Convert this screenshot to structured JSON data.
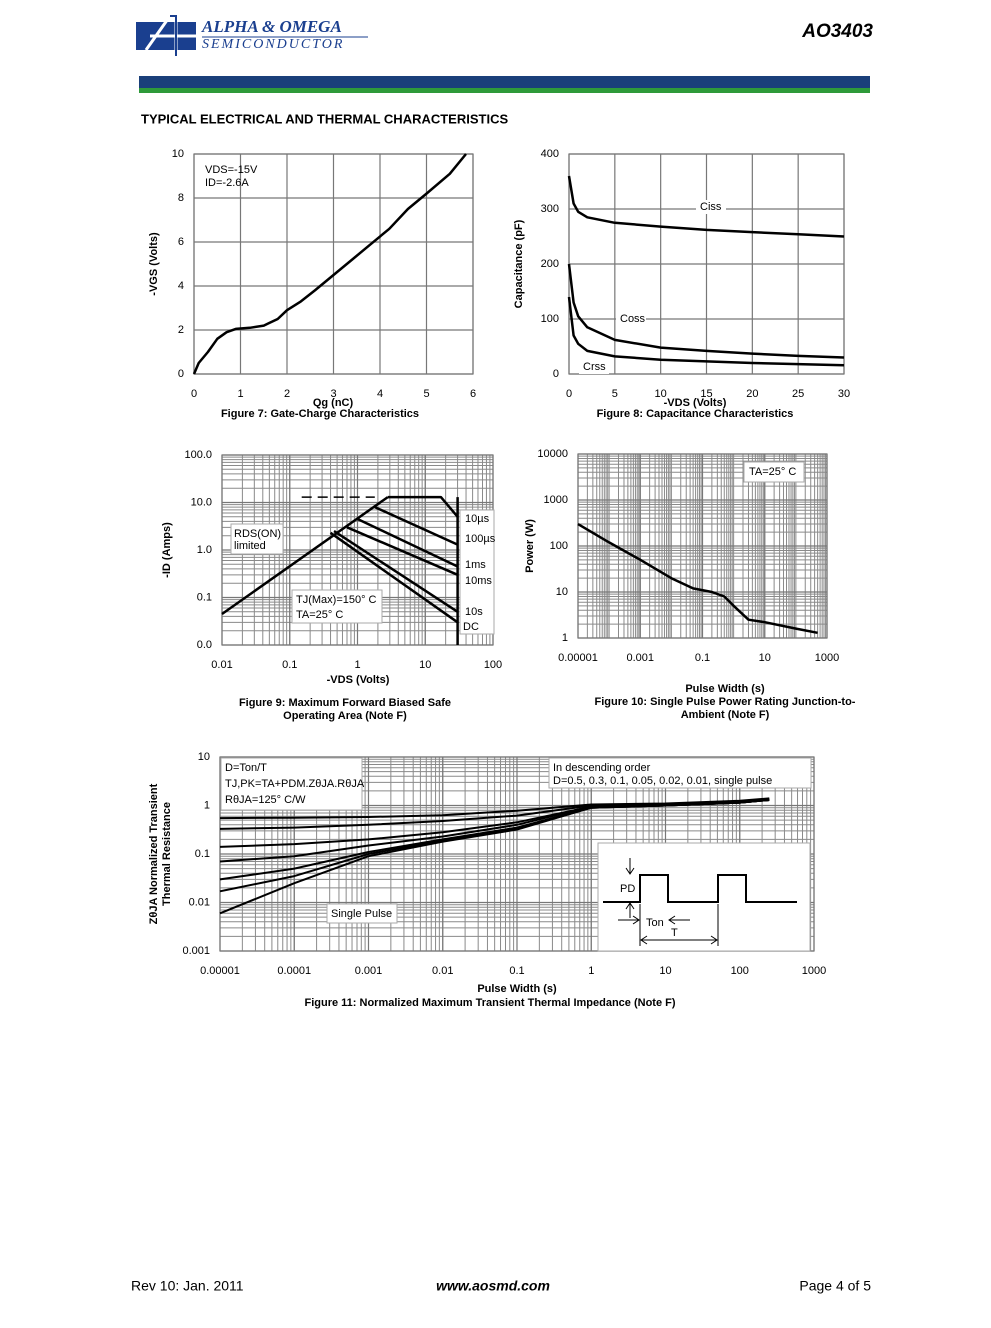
{
  "header": {
    "company": "ALPHA & OMEGA",
    "division": "SEMICONDUCTOR",
    "part": "AO3403"
  },
  "section_title": "TYPICAL ELECTRICAL AND THERMAL CHARACTERISTICS",
  "chart_data": [
    {
      "type": "line",
      "caption": [
        "Figure 7: Gate-Charge Characteristics"
      ],
      "xlabel": "Qg (nC)",
      "ylabel": [
        "-VGS (Volts)"
      ],
      "xlim": [
        0,
        6
      ],
      "ylim": [
        0,
        10
      ],
      "xticks": [
        0,
        1,
        2,
        3,
        4,
        5,
        6
      ],
      "yticks": [
        0,
        2,
        4,
        6,
        8,
        10
      ],
      "grid": true,
      "color": "#000000",
      "annotations": [
        "VDS=-15V",
        "ID=-2.6A"
      ],
      "series": [
        {
          "x": [
            0,
            0.1,
            0.3,
            0.5,
            0.7,
            0.9,
            1.2,
            1.5,
            1.6,
            1.8,
            2,
            2.3,
            2.6,
            3,
            3.4,
            3.8,
            4.2,
            4.6,
            5,
            5.5,
            5.85
          ],
          "values": [
            0,
            0.5,
            1,
            1.6,
            1.9,
            2.05,
            2.1,
            2.2,
            2.3,
            2.5,
            2.9,
            3.3,
            3.8,
            4.5,
            5.2,
            5.9,
            6.6,
            7.5,
            8.2,
            9.1,
            10
          ]
        }
      ]
    },
    {
      "type": "line",
      "caption": [
        "Figure 8: Capacitance Characteristics"
      ],
      "xlabel": "-VDS (Volts)",
      "ylabel": [
        "Capacitance (pF)"
      ],
      "xlim": [
        0,
        30
      ],
      "ylim": [
        0,
        400
      ],
      "xticks": [
        0,
        5,
        10,
        15,
        20,
        25,
        30
      ],
      "yticks": [
        0,
        100,
        200,
        300,
        400
      ],
      "grid": true,
      "color": "#000000",
      "series": [
        {
          "name": "Ciss",
          "x": [
            0,
            0.5,
            1,
            2,
            5,
            10,
            15,
            20,
            25,
            30
          ],
          "values": [
            360,
            310,
            295,
            285,
            275,
            268,
            262,
            258,
            254,
            250
          ]
        },
        {
          "name": "Coss",
          "x": [
            0,
            0.5,
            1,
            2,
            5,
            10,
            15,
            20,
            25,
            30
          ],
          "values": [
            200,
            130,
            105,
            85,
            62,
            48,
            42,
            37,
            33,
            30
          ]
        },
        {
          "name": "Crss",
          "x": [
            0,
            0.5,
            1,
            2,
            5,
            10,
            15,
            20,
            25,
            30
          ],
          "values": [
            140,
            70,
            55,
            42,
            32,
            26,
            23,
            20,
            18,
            16
          ]
        }
      ]
    },
    {
      "type": "line",
      "caption": [
        "Figure 9: Maximum Forward Biased Safe",
        "Operating Area (Note F)"
      ],
      "xlabel": "-VDS (Volts)",
      "ylabel": [
        "-ID (Amps)"
      ],
      "xlog": true,
      "ylog": true,
      "xlim": [
        0.01,
        100
      ],
      "ylim": [
        0.01,
        100
      ],
      "xticks": [
        0.01,
        0.1,
        1,
        10,
        100
      ],
      "yticks": [
        {
          "value": 100,
          "label": "100.0"
        },
        {
          "value": 10,
          "label": "10.0"
        },
        {
          "value": 1,
          "label": "1.0"
        },
        0.1,
        {
          "value": 0.01,
          "label": "0.0"
        }
      ],
      "grid": true,
      "color": "#000000",
      "annotations": [
        "RDS(ON)",
        "limited",
        "TJ(Max)=150° C",
        "TA=25° C"
      ],
      "series": [
        {
          "x": [
            0.01,
            2.8
          ],
          "values": [
            0.045,
            13
          ]
        },
        {
          "x": [
            0.15,
            1.8
          ],
          "values": [
            13,
            13
          ],
          "dash": true
        },
        {
          "x": [
            30,
            30
          ],
          "values": [
            0.01,
            13
          ]
        },
        {
          "name": "10µs",
          "x": [
            2.8,
            17,
            30
          ],
          "values": [
            13,
            13,
            5
          ]
        },
        {
          "name": "100µs",
          "x": [
            1.8,
            30
          ],
          "values": [
            8,
            1.3
          ]
        },
        {
          "name": "1ms",
          "x": [
            1.0,
            30
          ],
          "values": [
            4.5,
            0.45
          ]
        },
        {
          "name": "10ms",
          "x": [
            0.7,
            30
          ],
          "values": [
            3,
            0.3
          ]
        },
        {
          "name": "10s",
          "x": [
            0.45,
            30
          ],
          "values": [
            2.5,
            0.05
          ]
        },
        {
          "name": "DC",
          "x": [
            0.4,
            30
          ],
          "values": [
            2.3,
            0.03
          ]
        }
      ]
    },
    {
      "type": "line",
      "caption": [
        "Figure 10: Single Pulse Power Rating Junction-to-",
        "Ambient (Note F)"
      ],
      "xlabel": "Pulse Width (s)",
      "ylabel": [
        "Power (W)"
      ],
      "xlog": true,
      "ylog": true,
      "xlim": [
        1e-05,
        1000
      ],
      "ylim": [
        1,
        10000
      ],
      "xticks": [
        1e-05,
        0.001,
        0.1,
        10,
        1000
      ],
      "yticks": [
        1,
        10,
        100,
        1000,
        10000
      ],
      "grid": true,
      "color": "#000000",
      "annotations": [
        "TA=25° C"
      ],
      "series": [
        {
          "x": [
            1e-05,
            0.0001,
            0.001,
            0.01,
            0.05,
            0.2,
            0.5,
            1,
            3,
            10,
            100,
            500
          ],
          "values": [
            300,
            120,
            50,
            20,
            12,
            10,
            8,
            5,
            2.5,
            2.2,
            1.6,
            1.3
          ]
        }
      ]
    },
    {
      "type": "line",
      "caption": [
        "Figure 11: Normalized Maximum Transient Thermal Impedance (Note F)"
      ],
      "xlabel": "Pulse Width (s)",
      "ylabel": [
        "ZθJA Normalized Transient",
        "Thermal Resistance"
      ],
      "xlog": true,
      "ylog": true,
      "xlim": [
        1e-05,
        1000
      ],
      "ylim": [
        0.001,
        10
      ],
      "xticks": [
        1e-05,
        0.0001,
        0.001,
        0.01,
        0.1,
        1,
        10,
        100,
        1000
      ],
      "yticks": [
        10,
        1,
        0.1,
        0.01,
        0.001
      ],
      "grid": true,
      "color": "#000000",
      "annotations": [
        "D=Ton/T",
        "TJ,PK=TA+PDM.ZθJA.RθJA",
        "RθJA=125° C/W",
        "In descending order",
        "D=0.5, 0.3, 0.1, 0.05, 0.02, 0.01, single pulse",
        "Single Pulse",
        "PD",
        "Ton",
        "T"
      ],
      "series": [
        {
          "x": [
            1e-05,
            0.0001,
            0.001,
            0.01,
            0.1,
            1,
            10,
            100,
            250
          ],
          "values": [
            0.55,
            0.56,
            0.58,
            0.63,
            0.78,
            1.05,
            1.1,
            1.25,
            1.4
          ]
        },
        {
          "x": [
            1e-05,
            0.0001,
            0.001,
            0.01,
            0.1,
            1,
            10,
            100,
            250
          ],
          "values": [
            0.33,
            0.35,
            0.4,
            0.48,
            0.62,
            1.0,
            1.05,
            1.2,
            1.35
          ]
        },
        {
          "x": [
            1e-05,
            0.0001,
            0.001,
            0.01,
            0.1,
            1,
            10,
            100,
            250
          ],
          "values": [
            0.14,
            0.16,
            0.2,
            0.28,
            0.45,
            0.95,
            1.0,
            1.15,
            1.3
          ]
        },
        {
          "x": [
            1e-05,
            0.0001,
            0.001,
            0.01,
            0.1,
            1,
            10,
            100,
            250
          ],
          "values": [
            0.07,
            0.09,
            0.15,
            0.23,
            0.4,
            0.95,
            1.0,
            1.15,
            1.3
          ]
        },
        {
          "x": [
            1e-05,
            0.0001,
            0.001,
            0.01,
            0.1,
            1,
            10,
            100,
            250
          ],
          "values": [
            0.03,
            0.05,
            0.11,
            0.2,
            0.35,
            0.9,
            1.0,
            1.15,
            1.3
          ]
        },
        {
          "x": [
            1e-05,
            0.0001,
            0.001,
            0.01,
            0.1,
            1,
            10,
            100,
            250
          ],
          "values": [
            0.017,
            0.035,
            0.1,
            0.19,
            0.33,
            0.9,
            1.0,
            1.15,
            1.3
          ]
        },
        {
          "x": [
            1e-05,
            0.0001,
            0.001,
            0.01,
            0.1,
            1,
            10,
            100,
            250
          ],
          "values": [
            0.006,
            0.025,
            0.09,
            0.18,
            0.32,
            0.9,
            1.0,
            1.15,
            1.3
          ]
        }
      ]
    }
  ],
  "footer": {
    "revision": "Rev 10: Jan. 2011",
    "website": "www.aosmd.com",
    "page": "Page 4 of 5"
  }
}
